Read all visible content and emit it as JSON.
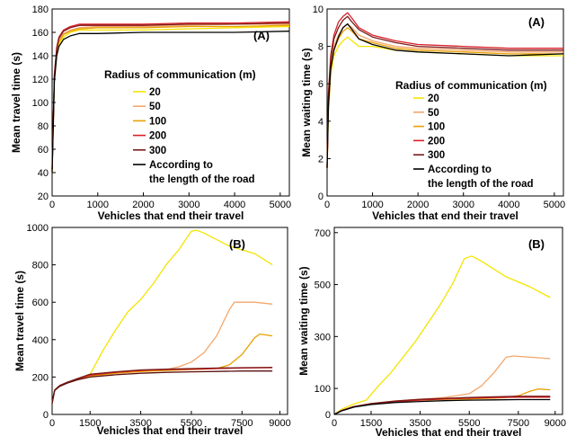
{
  "chart_data": [
    {
      "type": "line",
      "tag": "(A)",
      "xlabel": "Vehicles that end their travel",
      "ylabel": "Mean travel time (s)",
      "xlim": [
        0,
        5200
      ],
      "ylim": [
        20,
        180
      ],
      "xticks": [
        0,
        1000,
        2000,
        3000,
        4000,
        5000
      ],
      "yticks": [
        20,
        40,
        60,
        80,
        100,
        120,
        140,
        160,
        180
      ],
      "legend": {
        "title": "Radius of communication (m)",
        "placement": "center",
        "entries": [
          "20",
          "50",
          "100",
          "200",
          "300",
          "According to",
          "the length of the road"
        ]
      },
      "series": [
        {
          "name": "20",
          "color": "#f5e400",
          "x": [
            0,
            50,
            100,
            150,
            250,
            400,
            600,
            1000,
            2000,
            3000,
            4000,
            5200
          ],
          "y": [
            40,
            120,
            142,
            150,
            156,
            160,
            162,
            162,
            162,
            163,
            164,
            165
          ]
        },
        {
          "name": "50",
          "color": "#f3a66b",
          "x": [
            0,
            50,
            100,
            150,
            250,
            400,
            600,
            1000,
            2000,
            3000,
            4000,
            5200
          ],
          "y": [
            42,
            122,
            145,
            153,
            159,
            162,
            164,
            165,
            165,
            166,
            167,
            167
          ]
        },
        {
          "name": "100",
          "color": "#e9a000",
          "x": [
            0,
            50,
            100,
            150,
            250,
            400,
            600,
            1000,
            2000,
            3000,
            4000,
            5200
          ],
          "y": [
            41,
            121,
            144,
            152,
            158,
            161,
            163,
            164,
            164,
            165,
            165,
            166
          ]
        },
        {
          "name": "200",
          "color": "#d81f26",
          "x": [
            0,
            50,
            100,
            150,
            250,
            400,
            600,
            1000,
            2000,
            3000,
            4000,
            5200
          ],
          "y": [
            43,
            124,
            147,
            156,
            162,
            165,
            167,
            167,
            167,
            168,
            168,
            169
          ]
        },
        {
          "name": "300",
          "color": "#7a1a1a",
          "x": [
            0,
            50,
            100,
            150,
            250,
            400,
            600,
            1000,
            2000,
            3000,
            4000,
            5200
          ],
          "y": [
            43,
            123,
            146,
            155,
            161,
            164,
            166,
            166,
            166,
            167,
            167,
            168
          ]
        },
        {
          "name": "According to the length of the road",
          "color": "#000000",
          "x": [
            0,
            50,
            100,
            150,
            250,
            400,
            600,
            1000,
            2000,
            3000,
            4000,
            5200
          ],
          "y": [
            40,
            118,
            140,
            148,
            154,
            157,
            159,
            159,
            160,
            160,
            160,
            161
          ]
        }
      ]
    },
    {
      "type": "line",
      "tag": "(A)",
      "xlabel": "Vehicles that end their travel",
      "ylabel": "Mean waiting time (s)",
      "xlim": [
        0,
        5200
      ],
      "ylim": [
        0,
        10
      ],
      "xticks": [
        0,
        1000,
        2000,
        3000,
        4000,
        5000
      ],
      "yticks": [
        0,
        2,
        4,
        6,
        8,
        10
      ],
      "legend": {
        "title": "Radius of communication (m)",
        "placement": "center-right",
        "entries": [
          "20",
          "50",
          "100",
          "200",
          "300",
          "According to",
          "the length of the road"
        ]
      },
      "series": [
        {
          "name": "20",
          "color": "#f5e400",
          "x": [
            0,
            30,
            80,
            150,
            250,
            350,
            450,
            550,
            700,
            1000,
            1500,
            2000,
            3000,
            4000,
            5200
          ],
          "y": [
            1.5,
            4.5,
            6.5,
            7.5,
            8.0,
            8.3,
            8.5,
            8.3,
            8.0,
            8.0,
            7.8,
            7.7,
            7.6,
            7.5,
            7.5
          ]
        },
        {
          "name": "50",
          "color": "#f3a66b",
          "x": [
            0,
            30,
            80,
            150,
            250,
            350,
            450,
            550,
            700,
            1000,
            1500,
            2000,
            3000,
            4000,
            5200
          ],
          "y": [
            1.5,
            5.0,
            7.0,
            8.0,
            8.6,
            9.0,
            9.2,
            9.0,
            8.6,
            8.3,
            8.0,
            7.9,
            7.8,
            7.7,
            7.7
          ]
        },
        {
          "name": "100",
          "color": "#e9a000",
          "x": [
            0,
            30,
            80,
            150,
            250,
            350,
            450,
            550,
            700,
            1000,
            1500,
            2000,
            3000,
            4000,
            5200
          ],
          "y": [
            1.5,
            4.8,
            6.8,
            7.8,
            8.4,
            8.8,
            9.0,
            8.8,
            8.4,
            8.2,
            7.9,
            7.8,
            7.7,
            7.6,
            7.6
          ]
        },
        {
          "name": "200",
          "color": "#d81f26",
          "x": [
            0,
            30,
            80,
            150,
            250,
            350,
            450,
            550,
            700,
            1000,
            1500,
            2000,
            3000,
            4000,
            5200
          ],
          "y": [
            1.5,
            5.5,
            7.5,
            8.6,
            9.3,
            9.6,
            9.8,
            9.5,
            9.0,
            8.6,
            8.3,
            8.1,
            8.0,
            7.9,
            7.9
          ]
        },
        {
          "name": "300",
          "color": "#7a1a1a",
          "x": [
            0,
            30,
            80,
            150,
            250,
            350,
            450,
            550,
            700,
            1000,
            1500,
            2000,
            3000,
            4000,
            5200
          ],
          "y": [
            1.5,
            5.3,
            7.3,
            8.4,
            9.0,
            9.4,
            9.6,
            9.3,
            8.9,
            8.5,
            8.2,
            8.0,
            7.9,
            7.8,
            7.8
          ]
        },
        {
          "name": "According to the length of the road",
          "color": "#000000",
          "x": [
            0,
            30,
            80,
            150,
            250,
            350,
            450,
            550,
            700,
            1000,
            1500,
            2000,
            3000,
            4000,
            5200
          ],
          "y": [
            1.5,
            4.8,
            6.8,
            7.8,
            8.5,
            9.0,
            9.2,
            8.9,
            8.4,
            8.1,
            7.8,
            7.7,
            7.6,
            7.5,
            7.6
          ]
        }
      ]
    },
    {
      "type": "line",
      "tag": "(B)",
      "xlabel": "Vehicles that end their travel",
      "ylabel": "Mean travel time (s)",
      "xlim": [
        0,
        9300
      ],
      "ylim": [
        0,
        1000
      ],
      "xticks": [
        0,
        1500,
        3500,
        5500,
        7500,
        9000
      ],
      "yticks": [
        0,
        200,
        400,
        600,
        800,
        1000
      ],
      "series": [
        {
          "name": "20",
          "color": "#f5e400",
          "x": [
            0,
            100,
            300,
            600,
            1000,
            1500,
            2000,
            2500,
            3000,
            3500,
            4000,
            4500,
            5000,
            5500,
            5700,
            6000,
            7000,
            8000,
            8700
          ],
          "y": [
            60,
            130,
            155,
            170,
            185,
            215,
            340,
            450,
            550,
            615,
            700,
            800,
            880,
            980,
            985,
            970,
            900,
            860,
            800
          ]
        },
        {
          "name": "50",
          "color": "#f3a66b",
          "x": [
            0,
            100,
            300,
            600,
            1000,
            1500,
            2500,
            3500,
            4500,
            5000,
            5500,
            6000,
            6500,
            7000,
            7200,
            8000,
            8700
          ],
          "y": [
            60,
            130,
            155,
            172,
            190,
            205,
            220,
            230,
            240,
            255,
            280,
            330,
            420,
            560,
            600,
            600,
            590
          ]
        },
        {
          "name": "100",
          "color": "#e9a000",
          "x": [
            0,
            100,
            300,
            600,
            1000,
            1500,
            2500,
            3500,
            4500,
            5500,
            6500,
            7000,
            7500,
            8000,
            8200,
            8700
          ],
          "y": [
            60,
            130,
            155,
            172,
            190,
            205,
            220,
            230,
            235,
            240,
            245,
            265,
            320,
            410,
            430,
            420
          ]
        },
        {
          "name": "200",
          "color": "#d81f26",
          "x": [
            0,
            100,
            300,
            600,
            1000,
            1500,
            2500,
            3500,
            4500,
            5500,
            6500,
            7500,
            8700
          ],
          "y": [
            60,
            130,
            155,
            172,
            190,
            210,
            225,
            235,
            240,
            242,
            245,
            248,
            250
          ]
        },
        {
          "name": "300",
          "color": "#7a1a1a",
          "x": [
            0,
            100,
            300,
            600,
            1000,
            1500,
            2500,
            3500,
            4500,
            5500,
            6500,
            7500,
            8700
          ],
          "y": [
            60,
            130,
            155,
            172,
            192,
            215,
            228,
            238,
            242,
            245,
            248,
            250,
            252
          ]
        },
        {
          "name": "According to the length of the road",
          "color": "#5a1010",
          "x": [
            0,
            100,
            300,
            600,
            1000,
            1500,
            2500,
            3500,
            4500,
            5500,
            6500,
            7500,
            8700
          ],
          "y": [
            60,
            128,
            150,
            168,
            185,
            200,
            212,
            220,
            225,
            228,
            230,
            232,
            232
          ]
        }
      ]
    },
    {
      "type": "line",
      "tag": "(B)",
      "xlabel": "Vehicles that end their travel",
      "ylabel": "Mean waiting time (s)",
      "xlim": [
        0,
        9300
      ],
      "ylim": [
        0,
        720
      ],
      "xticks": [
        0,
        1500,
        3500,
        5500,
        7500,
        9000
      ],
      "yticks": [
        0,
        100,
        300,
        500,
        700
      ],
      "ytick_labels": [
        "0",
        "100",
        "300",
        "500",
        "700"
      ],
      "series": [
        {
          "name": "20",
          "color": "#f5e400",
          "x": [
            0,
            300,
            800,
            1300,
            1800,
            2300,
            2800,
            3300,
            3800,
            4300,
            4800,
            5300,
            5600,
            6000,
            7000,
            8000,
            8800
          ],
          "y": [
            0,
            20,
            40,
            55,
            110,
            160,
            220,
            280,
            350,
            420,
            500,
            600,
            610,
            590,
            530,
            490,
            450
          ]
        },
        {
          "name": "50",
          "color": "#f3a66b",
          "x": [
            0,
            300,
            800,
            1500,
            2500,
            3500,
            4500,
            5500,
            6000,
            6500,
            7000,
            7300,
            8000,
            8800
          ],
          "y": [
            0,
            15,
            30,
            42,
            52,
            58,
            65,
            80,
            110,
            160,
            220,
            225,
            220,
            215
          ]
        },
        {
          "name": "100",
          "color": "#e9a000",
          "x": [
            0,
            300,
            800,
            1500,
            2500,
            3500,
            4500,
            5500,
            6500,
            7000,
            7500,
            8000,
            8300,
            8800
          ],
          "y": [
            0,
            15,
            30,
            40,
            50,
            55,
            58,
            60,
            63,
            65,
            72,
            90,
            98,
            95
          ]
        },
        {
          "name": "200",
          "color": "#d81f26",
          "x": [
            0,
            300,
            800,
            1500,
            2500,
            3500,
            4500,
            5500,
            6500,
            7500,
            8800
          ],
          "y": [
            0,
            15,
            30,
            40,
            50,
            55,
            60,
            63,
            65,
            66,
            66
          ]
        },
        {
          "name": "300",
          "color": "#7a1a1a",
          "x": [
            0,
            300,
            800,
            1500,
            2500,
            3500,
            4500,
            5500,
            6500,
            7500,
            8800
          ],
          "y": [
            0,
            15,
            30,
            42,
            52,
            58,
            62,
            65,
            68,
            70,
            70
          ]
        },
        {
          "name": "According to the length of the road",
          "color": "#000000",
          "x": [
            0,
            300,
            800,
            1500,
            2500,
            3500,
            4500,
            5500,
            6500,
            7500,
            8800
          ],
          "y": [
            0,
            14,
            28,
            38,
            46,
            50,
            53,
            55,
            56,
            57,
            57
          ]
        }
      ]
    }
  ]
}
